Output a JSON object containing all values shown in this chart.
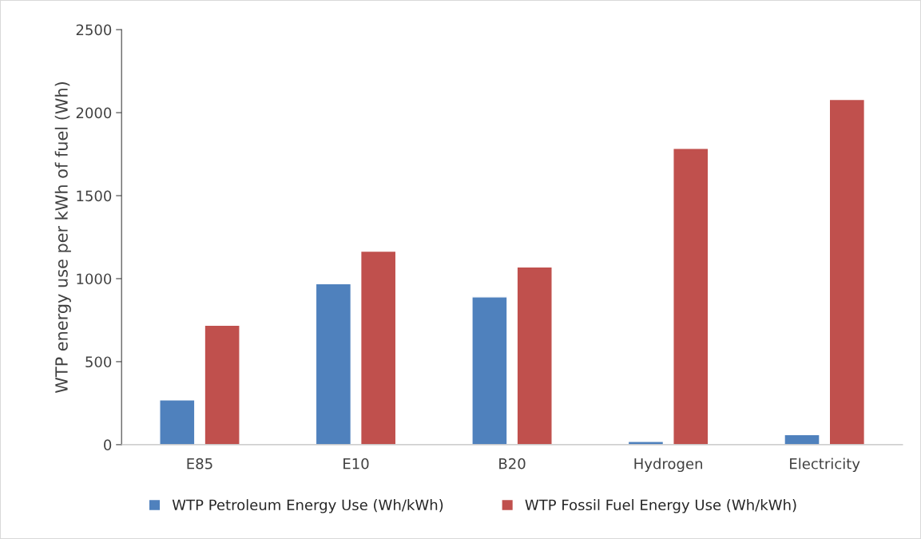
{
  "chart_data": {
    "type": "bar",
    "ylabel": "WTP energy use per kWh of fuel (Wh)",
    "categories": [
      "E85",
      "E10",
      "B20",
      "Hydrogen",
      "Electricity"
    ],
    "series": [
      {
        "name": "WTP Petroleum Energy Use (Wh/kWh)",
        "color": "#4f81bd",
        "values": [
          270,
          970,
          890,
          20,
          60
        ]
      },
      {
        "name": "WTP Fossil Fuel Energy Use (Wh/kWh)",
        "color": "#c0504d",
        "values": [
          720,
          1165,
          1070,
          1785,
          2080
        ]
      }
    ],
    "ylim": [
      0,
      2500
    ],
    "yticks": [
      0,
      500,
      1000,
      1500,
      2000,
      2500
    ],
    "grid": false,
    "legend": "bottom"
  }
}
